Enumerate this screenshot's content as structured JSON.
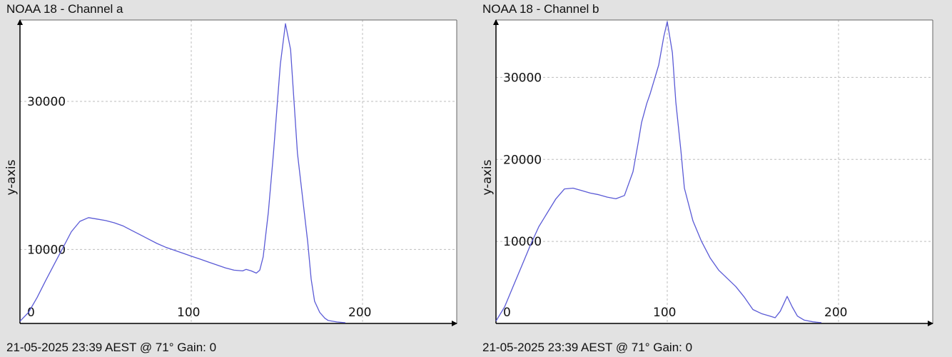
{
  "chart_data": [
    {
      "type": "line",
      "title": "NOAA 18 - Channel a",
      "footer": "21-05-2025 23:39 AEST @ 71° Gain: 0",
      "xlabel": "",
      "ylabel": "y-axis",
      "xlim": [
        0,
        255
      ],
      "ylim": [
        0,
        41000
      ],
      "xticks": [
        0,
        100,
        200
      ],
      "yticks": [
        10000,
        30000
      ],
      "ytick_labels_shown": [
        "30000",
        "10000"
      ],
      "grid": true,
      "series": [
        {
          "color": "#5a5ad6",
          "x": [
            0,
            5,
            10,
            15,
            20,
            25,
            30,
            35,
            40,
            45,
            50,
            55,
            60,
            65,
            70,
            75,
            80,
            85,
            90,
            95,
            100,
            105,
            110,
            115,
            120,
            125,
            130,
            132,
            135,
            138,
            140,
            142,
            145,
            148,
            150,
            152,
            155,
            158,
            160,
            162,
            165,
            168,
            170,
            172,
            175,
            178,
            180,
            185,
            190
          ],
          "y": [
            300,
            1500,
            3500,
            5800,
            8000,
            10200,
            12400,
            13800,
            14300,
            14100,
            13900,
            13600,
            13200,
            12600,
            12000,
            11400,
            10800,
            10300,
            9900,
            9500,
            9100,
            8700,
            8300,
            7900,
            7500,
            7200,
            7100,
            7300,
            7100,
            6800,
            7200,
            9000,
            15000,
            23000,
            29000,
            35000,
            40500,
            37000,
            30000,
            23000,
            17000,
            11000,
            6000,
            3000,
            1500,
            700,
            400,
            200,
            100
          ]
        }
      ]
    },
    {
      "type": "line",
      "title": "NOAA 18 - Channel b",
      "footer": "21-05-2025 23:39 AEST @ 71° Gain: 0",
      "xlabel": "",
      "ylabel": "y-axis",
      "xlim": [
        0,
        255
      ],
      "ylim": [
        0,
        37000
      ],
      "xticks": [
        0,
        100,
        200
      ],
      "yticks": [
        10000,
        20000,
        30000
      ],
      "ytick_labels_shown": [
        "30000",
        "20000",
        "10000"
      ],
      "grid": true,
      "series": [
        {
          "color": "#5a5ad6",
          "x": [
            0,
            5,
            10,
            15,
            20,
            25,
            30,
            35,
            40,
            45,
            50,
            55,
            60,
            65,
            70,
            75,
            80,
            83,
            85,
            88,
            90,
            95,
            98,
            100,
            103,
            105,
            108,
            110,
            115,
            120,
            125,
            130,
            135,
            140,
            145,
            150,
            155,
            160,
            163,
            166,
            170,
            173,
            176,
            180,
            185,
            190
          ],
          "y": [
            300,
            2000,
            4500,
            7000,
            9500,
            11800,
            13500,
            15200,
            16400,
            16500,
            16200,
            15900,
            15700,
            15400,
            15200,
            15600,
            18500,
            22000,
            24500,
            26800,
            28000,
            31500,
            35000,
            36800,
            33000,
            27000,
            21000,
            16500,
            12500,
            10000,
            8000,
            6500,
            5500,
            4500,
            3200,
            1700,
            1200,
            900,
            700,
            1500,
            3300,
            2000,
            900,
            400,
            200,
            100
          ]
        }
      ]
    }
  ]
}
